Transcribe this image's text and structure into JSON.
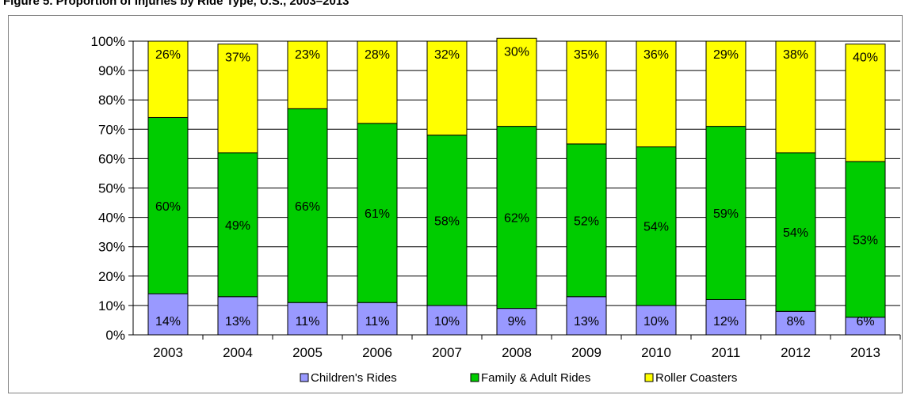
{
  "page_title": "Figure 5. Proportion of Injuries by Ride Type, U.S., 2003–2013",
  "chart_data": {
    "type": "bar",
    "stacked": true,
    "percent": true,
    "categories": [
      "2003",
      "2004",
      "2005",
      "2006",
      "2007",
      "2008",
      "2009",
      "2010",
      "2011",
      "2012",
      "2013"
    ],
    "series": [
      {
        "name": "Children's Rides",
        "color": "#9999ff",
        "values": [
          14,
          13,
          11,
          11,
          10,
          9,
          13,
          10,
          12,
          8,
          6
        ],
        "labels": [
          "14%",
          "13%",
          "11%",
          "11%",
          "10%",
          "9%",
          "13%",
          "10%",
          "12%",
          "8%",
          "6%"
        ]
      },
      {
        "name": "Family & Adult Rides",
        "color": "#00cc00",
        "values": [
          60,
          49,
          66,
          61,
          58,
          62,
          52,
          54,
          59,
          54,
          53
        ],
        "labels": [
          "60%",
          "49%",
          "66%",
          "61%",
          "58%",
          "62%",
          "52%",
          "54%",
          "59%",
          "54%",
          "53%"
        ]
      },
      {
        "name": "Roller Coasters",
        "color": "#ffff00",
        "values": [
          26,
          37,
          23,
          28,
          32,
          30,
          35,
          36,
          29,
          38,
          40
        ],
        "labels": [
          "26%",
          "37%",
          "23%",
          "28%",
          "32%",
          "30%",
          "35%",
          "36%",
          "29%",
          "38%",
          "40%"
        ]
      }
    ],
    "ylim": [
      0,
      100
    ],
    "yticks": [
      "0%",
      "10%",
      "20%",
      "30%",
      "40%",
      "50%",
      "60%",
      "70%",
      "80%",
      "90%",
      "100%"
    ],
    "grid": true,
    "legend": "bottom",
    "title": "",
    "xlabel": "",
    "ylabel": ""
  }
}
